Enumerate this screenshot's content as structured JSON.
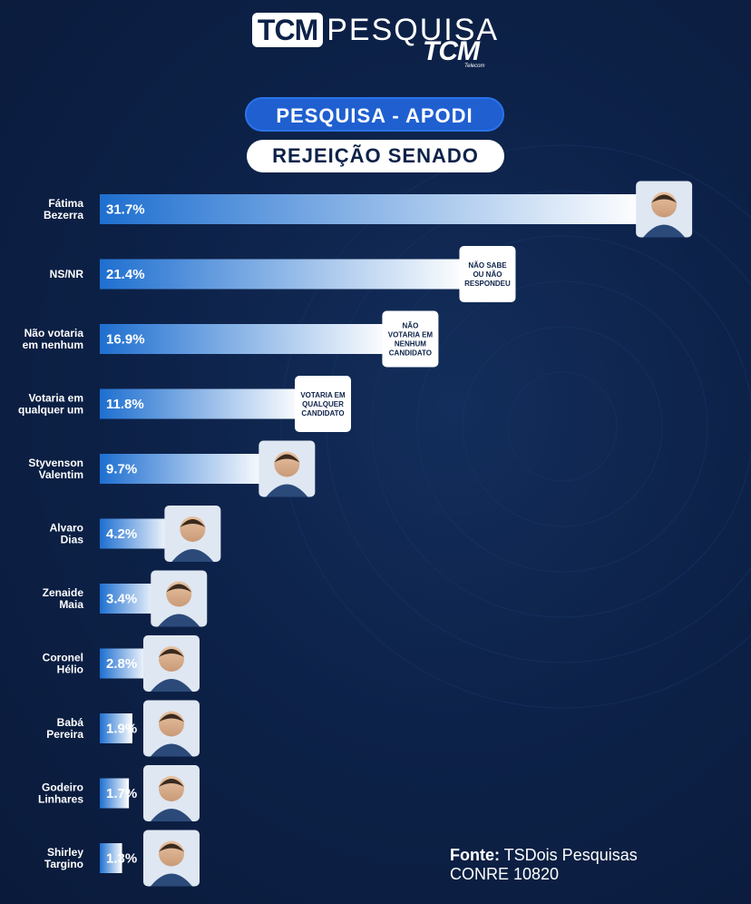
{
  "brand": {
    "logo_box": "TCM",
    "logo_word": "PESQUISA",
    "sub_logo": "TCM",
    "sub_logo_small": "Telecom"
  },
  "header": {
    "survey": "PESQUISA - APODI",
    "topic": "REJEIÇÃO  SENADO"
  },
  "footer": {
    "source_label": "Fonte:",
    "source_name": "TSDois Pesquisas",
    "registry": "CONRE 10820"
  },
  "colors": {
    "background": "#0d2249",
    "bar_start": "#1e6fd0",
    "bar_end": "#ffffff",
    "pill_blue": "#1f5fd0"
  },
  "chart_data": {
    "type": "bar",
    "orientation": "horizontal",
    "categories": [
      [
        "Fátima",
        "Bezerra"
      ],
      [
        "NS/NR"
      ],
      [
        "Não votaria",
        "em nenhum"
      ],
      [
        "Votaria em",
        "qualquer um"
      ],
      [
        "Styvenson",
        "Valentim"
      ],
      [
        "Alvaro",
        "Dias"
      ],
      [
        "Zenaide",
        "Maia"
      ],
      [
        "Coronel",
        "Hélio"
      ],
      [
        "Babá",
        "Pereira"
      ],
      [
        "Godeiro",
        "Linhares"
      ],
      [
        "Shirley",
        "Targino"
      ]
    ],
    "values": [
      31.7,
      21.4,
      16.9,
      11.8,
      9.7,
      4.2,
      3.4,
      2.8,
      1.9,
      1.7,
      1.3
    ],
    "value_labels": [
      "31.7%",
      "21.4%",
      "16.9%",
      "11.8%",
      "9.7%",
      "4.2%",
      "3.4%",
      "2.8%",
      "1.9%",
      "1.7%",
      "1.3%"
    ],
    "end_cards": [
      {
        "kind": "photo",
        "icon": "portrait-icon"
      },
      {
        "kind": "text",
        "lines": [
          "NÃO SABE",
          "OU NÃO",
          "RESPONDEU"
        ]
      },
      {
        "kind": "text",
        "lines": [
          "NÃO",
          "VOTARIA EM",
          "NENHUM",
          "CANDIDATO"
        ]
      },
      {
        "kind": "text",
        "lines": [
          "VOTARIA EM",
          "QUALQUER",
          "CANDIDATO"
        ]
      },
      {
        "kind": "photo",
        "icon": "portrait-icon"
      },
      {
        "kind": "photo",
        "icon": "portrait-icon"
      },
      {
        "kind": "photo",
        "icon": "portrait-icon"
      },
      {
        "kind": "photo",
        "icon": "portrait-icon"
      },
      {
        "kind": "photo",
        "icon": "portrait-icon"
      },
      {
        "kind": "photo",
        "icon": "portrait-icon"
      },
      {
        "kind": "photo",
        "icon": "portrait-icon"
      }
    ]
  }
}
